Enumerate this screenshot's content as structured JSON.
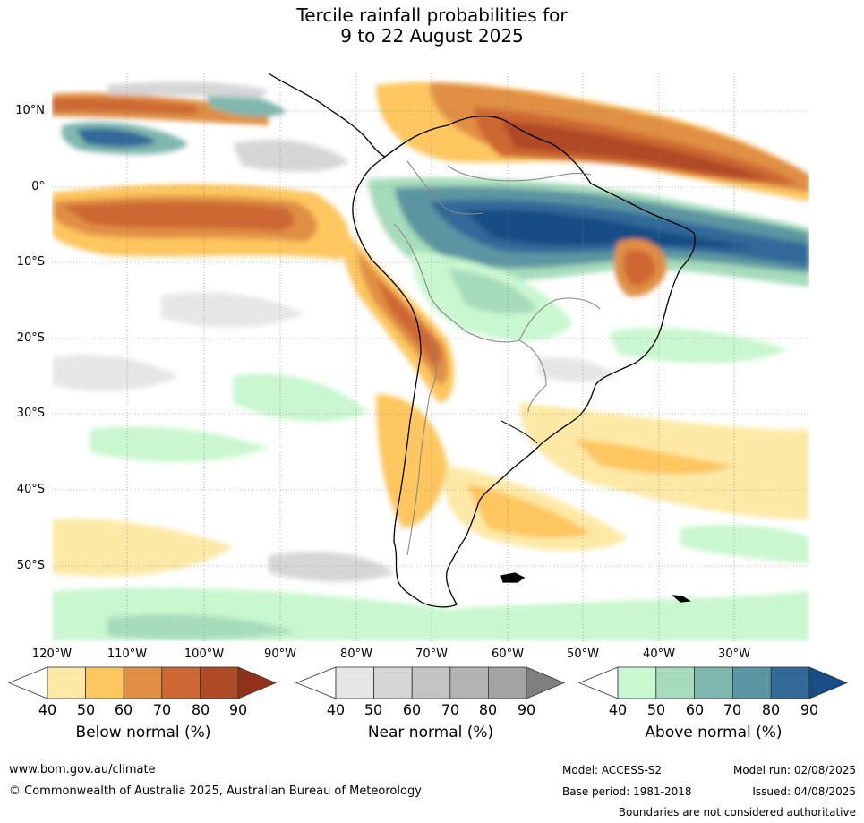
{
  "title": {
    "line1": "Tercile rainfall probabilities for",
    "line2": "9 to 22 August 2025"
  },
  "map": {
    "lat_labels": [
      "10°N",
      "0°",
      "10°S",
      "20°S",
      "30°S",
      "40°S",
      "50°S"
    ],
    "lon_labels": [
      "120°W",
      "110°W",
      "100°W",
      "90°W",
      "80°W",
      "70°W",
      "60°W",
      "50°W",
      "40°W",
      "30°W"
    ]
  },
  "colorbars": [
    {
      "label": "Below normal (%)",
      "ticks": [
        "40",
        "50",
        "60",
        "70",
        "80",
        "90"
      ],
      "colors": [
        "#fde9a6",
        "#fdc65f",
        "#e08f45",
        "#cd6733",
        "#af4a27",
        "#8f3219"
      ]
    },
    {
      "label": "Near normal (%)",
      "ticks": [
        "40",
        "50",
        "60",
        "70",
        "80",
        "90"
      ],
      "colors": [
        "#e6e6e6",
        "#d6d6d6",
        "#c4c4c4",
        "#b3b3b3",
        "#a3a3a3",
        "#808080"
      ]
    },
    {
      "label": "Above normal (%)",
      "ticks": [
        "40",
        "50",
        "60",
        "70",
        "80",
        "90"
      ],
      "colors": [
        "#c9f7cf",
        "#a6dcbb",
        "#80b8ae",
        "#5b95a2",
        "#336999",
        "#184d85"
      ]
    }
  ],
  "footer": {
    "url": "www.bom.gov.au/climate",
    "copyright": "© Commonwealth of Australia 2025, Australian Bureau of Meteorology",
    "model": "Model: ACCESS-S2",
    "model_run": "Model run: 02/08/2025",
    "base_period": "Base period: 1981-2018",
    "issued": "Issued: 04/08/2025",
    "disclaimer": "Boundaries are not considered authoritative"
  }
}
